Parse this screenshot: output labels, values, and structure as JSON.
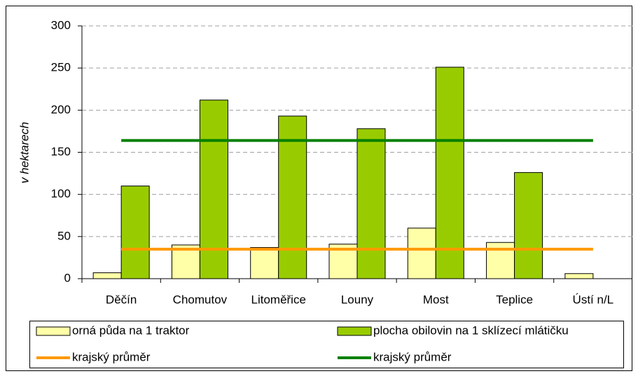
{
  "chart_data": {
    "type": "bar",
    "y_label": "v hektarech",
    "categories": [
      "Děčín",
      "Chomutov",
      "Litoměřice",
      "Louny",
      "Most",
      "Teplice",
      "Ústí n/L"
    ],
    "series": [
      {
        "name": "orná půda na 1 traktor",
        "type": "bar",
        "color": "#ffffa8",
        "values": [
          7,
          40,
          37,
          41,
          60,
          43,
          6
        ]
      },
      {
        "name": "plocha obilovin na 1 sklízecí mlátičku",
        "type": "bar",
        "color": "#99cc00",
        "values": [
          110,
          212,
          193,
          178,
          251,
          126,
          null
        ]
      },
      {
        "name": "krajský průměr",
        "type": "line",
        "color": "#ff9900",
        "values": [
          35,
          35,
          35,
          35,
          35,
          35,
          35
        ]
      },
      {
        "name": "krajský průměr",
        "type": "line",
        "color": "#008000",
        "values": [
          164,
          164,
          164,
          164,
          164,
          164,
          164
        ]
      }
    ],
    "ylim": [
      0,
      300
    ],
    "yticks": [
      0,
      50,
      100,
      150,
      200,
      250,
      300
    ],
    "grid": true,
    "legend": "bottom"
  }
}
